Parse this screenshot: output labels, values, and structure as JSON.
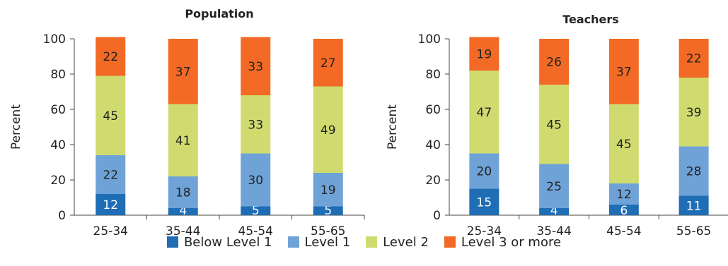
{
  "chart_data": [
    {
      "type": "bar",
      "stacked": true,
      "title": "Population",
      "xlabel": "",
      "ylabel": "Percent",
      "ylim": [
        0,
        100
      ],
      "yticks": [
        "0",
        "20",
        "40",
        "60",
        "80",
        "100"
      ],
      "categories": [
        "25-34",
        "35-44",
        "45-54",
        "55-65"
      ],
      "series": [
        {
          "name": "Below Level 1",
          "values": [
            12,
            4,
            5,
            5
          ]
        },
        {
          "name": "Level 1",
          "values": [
            22,
            18,
            30,
            19
          ]
        },
        {
          "name": "Level 2",
          "values": [
            45,
            41,
            33,
            49
          ]
        },
        {
          "name": "Level 3 or more",
          "values": [
            22,
            37,
            33,
            27
          ]
        }
      ]
    },
    {
      "type": "bar",
      "stacked": true,
      "title": "Teachers",
      "xlabel": "",
      "ylabel": "Percent",
      "ylim": [
        0,
        100
      ],
      "yticks": [
        "0",
        "20",
        "40",
        "60",
        "80",
        "100"
      ],
      "categories": [
        "25-34",
        "35-44",
        "45-54",
        "55-65"
      ],
      "series": [
        {
          "name": "Below Level 1",
          "values": [
            15,
            4,
            6,
            11
          ]
        },
        {
          "name": "Level 1",
          "values": [
            20,
            25,
            12,
            28
          ]
        },
        {
          "name": "Level 2",
          "values": [
            47,
            45,
            45,
            39
          ]
        },
        {
          "name": "Level 3 or more",
          "values": [
            19,
            26,
            37,
            22
          ]
        }
      ]
    }
  ],
  "colors": [
    "#1f6db5",
    "#6fa3d8",
    "#cfdb6e",
    "#f26a25"
  ],
  "legend": {
    "items": [
      "Below Level 1",
      "Level 1",
      "Level 2",
      "Level 3 or more"
    ],
    "placement": "bottom"
  }
}
